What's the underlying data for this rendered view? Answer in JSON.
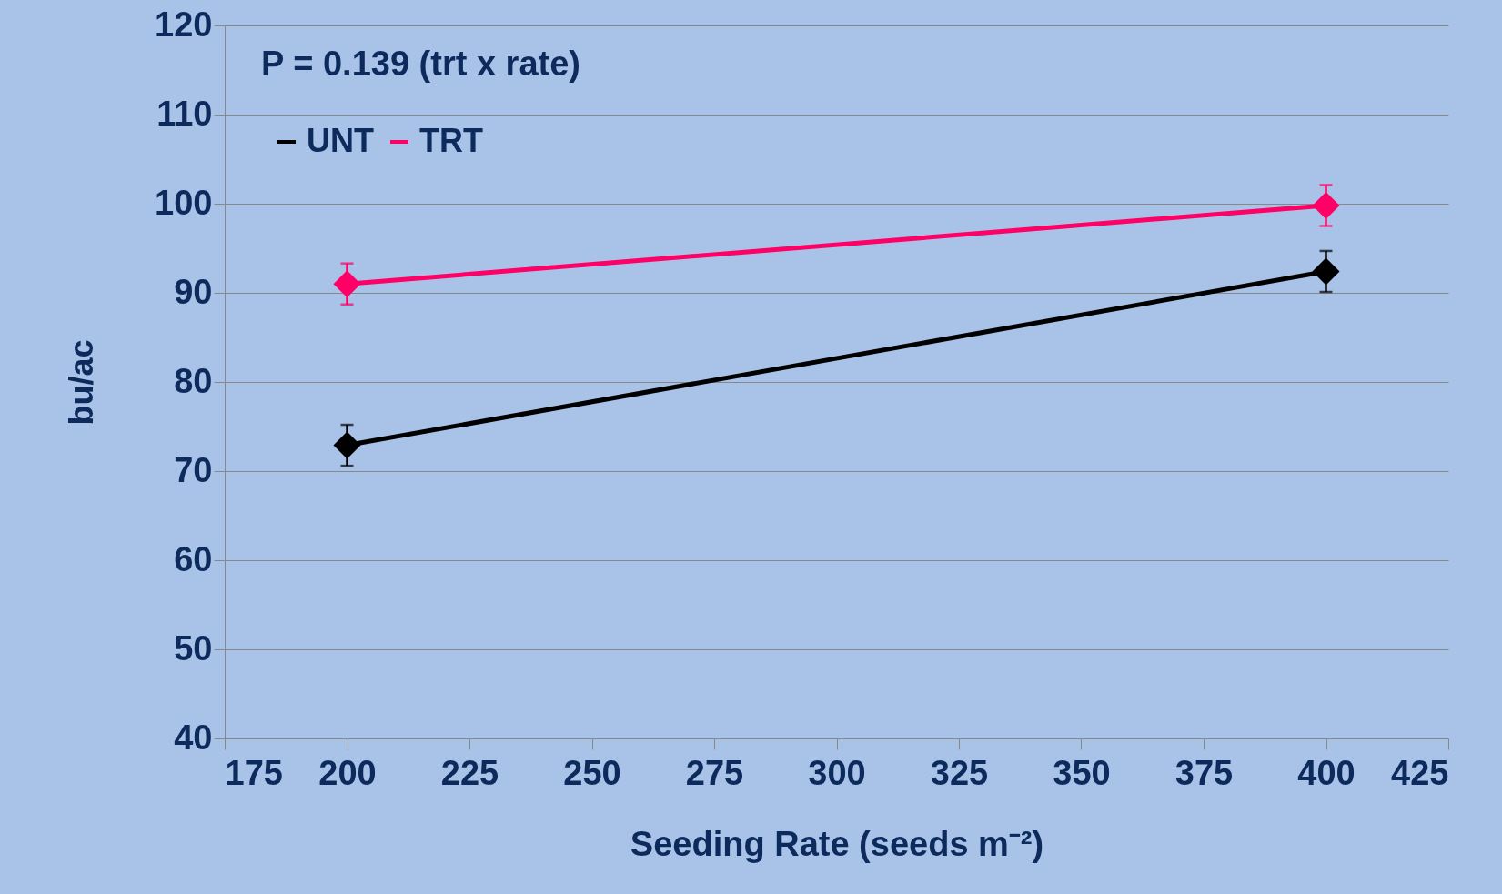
{
  "chart_data": {
    "type": "line",
    "xlabel": "Seeding Rate (seeds m⁻²)",
    "ylabel": "bu/ac",
    "annotations": [
      "P = 0.139 (trt x rate)"
    ],
    "x": [
      200,
      400
    ],
    "series": [
      {
        "name": "UNT",
        "color": "#000000",
        "values": [
          72.9,
          92.4
        ],
        "errors": [
          2.3,
          2.3
        ]
      },
      {
        "name": "TRT",
        "color": "#ff0066",
        "values": [
          91.0,
          99.8
        ],
        "errors": [
          2.3,
          2.3
        ]
      }
    ],
    "xlim": [
      175,
      425
    ],
    "xticks": [
      175,
      200,
      225,
      250,
      275,
      300,
      325,
      350,
      375,
      400,
      425
    ],
    "ylim": [
      40,
      120
    ],
    "yticks": [
      40,
      50,
      60,
      70,
      80,
      90,
      100,
      110,
      120
    ],
    "grid": "y",
    "legend": "top left",
    "marker": "diamond",
    "line_style": "solid"
  }
}
